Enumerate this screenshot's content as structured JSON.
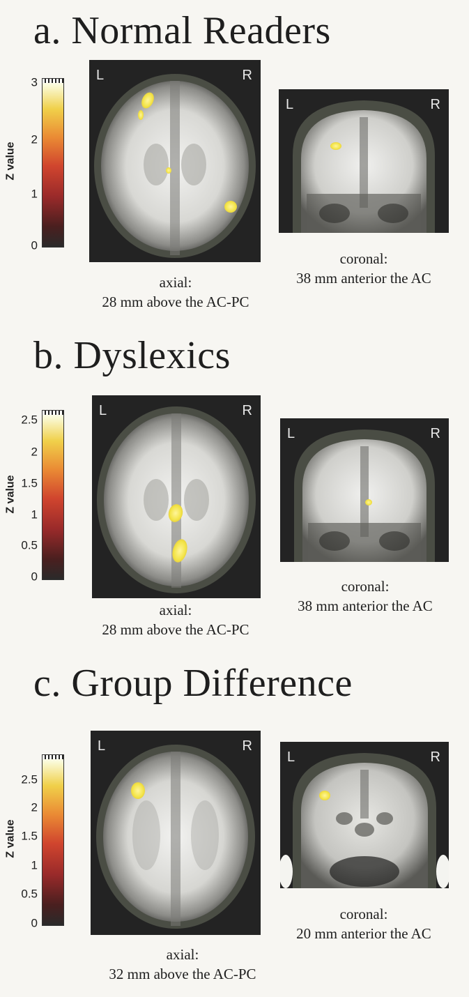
{
  "panels": [
    {
      "title": "a. Normal Readers",
      "colorbar": {
        "label": "Z value",
        "ticks": [
          "3",
          "2",
          "1",
          "0"
        ]
      },
      "axial": {
        "left": "L",
        "right": "R",
        "caption_line1": "axial:",
        "caption_line2": "28 mm above the AC-PC"
      },
      "coronal": {
        "left": "L",
        "right": "R",
        "caption_line1": "coronal:",
        "caption_line2": "38 mm anterior the AC"
      }
    },
    {
      "title": "b. Dyslexics",
      "colorbar": {
        "label": "Z value",
        "ticks": [
          "2.5",
          "2",
          "1.5",
          "1",
          "0.5",
          "0"
        ]
      },
      "axial": {
        "left": "L",
        "right": "R",
        "caption_line1": "axial:",
        "caption_line2": "28 mm above the AC-PC"
      },
      "coronal": {
        "left": "L",
        "right": "R",
        "caption_line1": "coronal:",
        "caption_line2": "38 mm anterior the AC"
      }
    },
    {
      "title": "c. Group Difference",
      "colorbar": {
        "label": "Z value",
        "ticks": [
          "2.5",
          "2",
          "1.5",
          "1",
          "0.5",
          "0"
        ]
      },
      "axial": {
        "left": "L",
        "right": "R",
        "caption_line1": "axial:",
        "caption_line2": "32 mm above the AC-PC"
      },
      "coronal": {
        "left": "L",
        "right": "R",
        "caption_line1": "coronal:",
        "caption_line2": "20 mm anterior the AC"
      }
    }
  ],
  "colors": {
    "activation": "#f3e448",
    "scan_background": "#232323"
  }
}
